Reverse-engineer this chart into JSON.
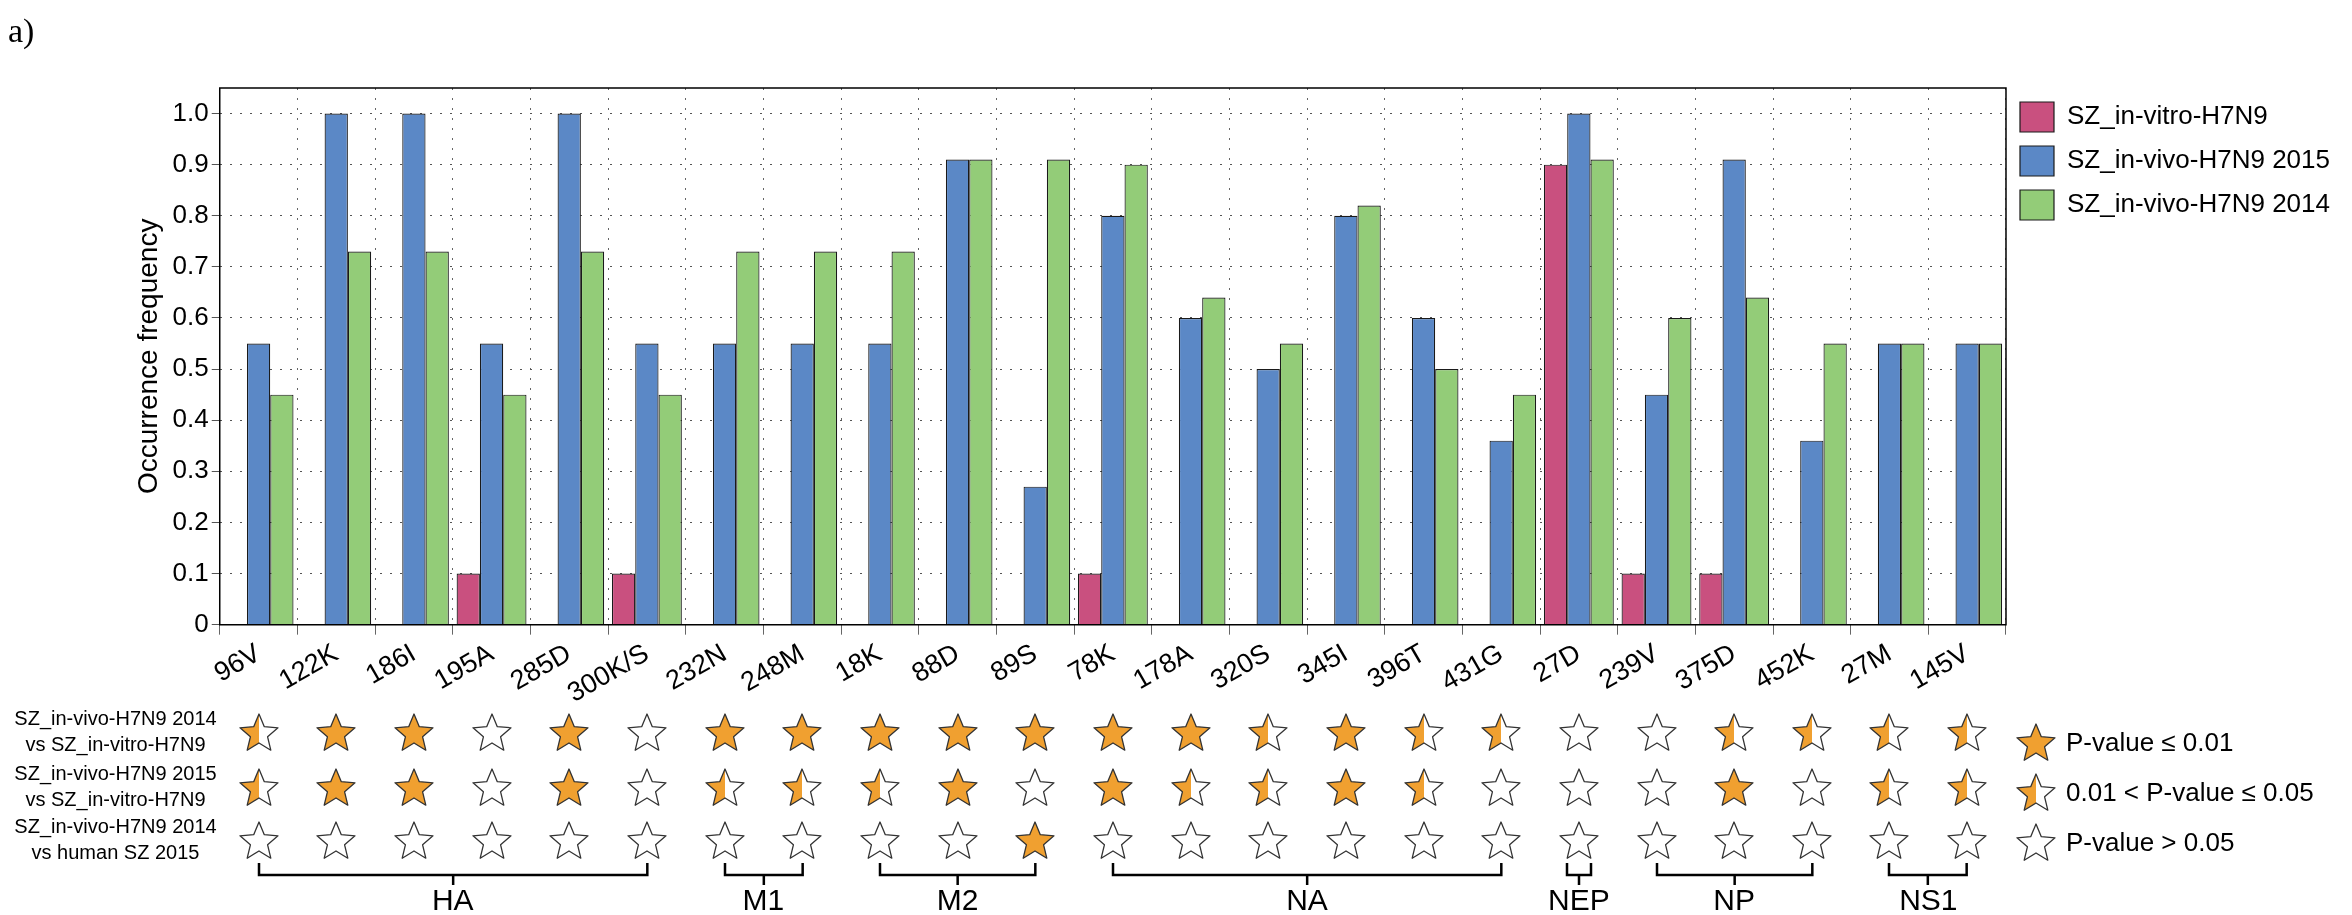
{
  "chart_data": {
    "type": "bar",
    "ylabel": "Occurrence frequency",
    "categories": [
      "96V",
      "122K",
      "186I",
      "195A",
      "285D",
      "300K/S",
      "232N",
      "248M",
      "18K",
      "88D",
      "89S",
      "78K",
      "178A",
      "320S",
      "345I",
      "396T",
      "431G",
      "27D",
      "239V",
      "375D",
      "452K",
      "27M",
      "145V"
    ],
    "series": [
      {
        "name": "SZ_in-vitro-H7N9",
        "color": "#c9507f",
        "values": [
          null,
          null,
          null,
          0.1,
          null,
          0.1,
          null,
          null,
          null,
          null,
          null,
          0.1,
          null,
          null,
          null,
          null,
          null,
          0.9,
          0.1,
          0.1,
          null,
          null,
          null
        ]
      },
      {
        "name": "SZ_in-vivo-H7N9 2015",
        "color": "#5b88c6",
        "values": [
          0.55,
          1.0,
          1.0,
          0.55,
          1.0,
          0.55,
          0.55,
          0.55,
          0.55,
          0.91,
          0.27,
          0.8,
          0.6,
          0.5,
          0.8,
          0.6,
          0.36,
          1.0,
          0.45,
          0.91,
          0.36,
          0.55,
          0.55
        ]
      },
      {
        "name": "SZ_in-vivo-H7N9 2014",
        "color": "#93cc78",
        "values": [
          0.45,
          0.73,
          0.73,
          0.45,
          0.73,
          0.45,
          0.73,
          0.73,
          0.73,
          0.91,
          0.91,
          0.9,
          0.64,
          0.55,
          0.82,
          0.5,
          0.45,
          0.91,
          0.6,
          0.64,
          0.55,
          0.55,
          0.55
        ]
      }
    ],
    "ylim": [
      0,
      1.05
    ],
    "yticks": [
      0,
      0.1,
      0.2,
      0.3,
      0.4,
      0.5,
      0.6,
      0.7,
      0.8,
      0.9,
      {
        "value": 1,
        "label": "1.0"
      }
    ],
    "grid": true,
    "legend": "right",
    "annotations": [
      "a)",
      "SZ_in-vivo-H7N9 2014 vs SZ_in-vitro-H7N9",
      "SZ_in-vivo-H7N9 2015 vs SZ_in-vitro-H7N9",
      "SZ_in-vivo-H7N9 2014 vs human SZ 2015",
      "HA",
      "M1",
      "M2",
      "NA",
      "NEP",
      "NP",
      "NS1",
      "P-value ≤ 0.01",
      "0.01 < P-value ≤ 0.05",
      "P-value > 0.05"
    ]
  }
}
